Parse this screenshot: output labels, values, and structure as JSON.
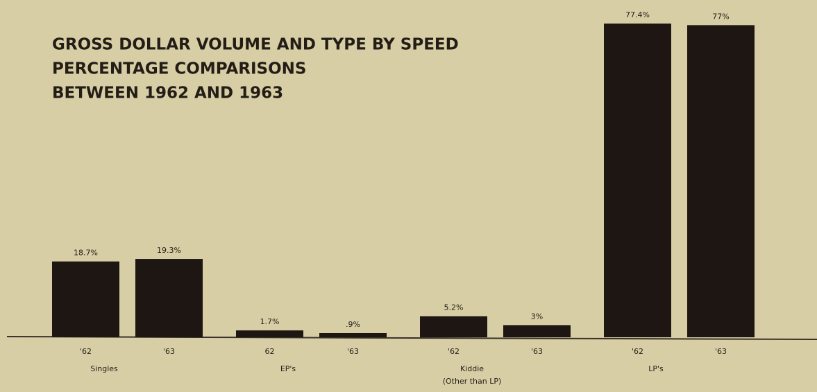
{
  "chart_data": {
    "type": "bar",
    "title": [
      "GROSS DOLLAR VOLUME AND TYPE BY SPEED",
      "PERCENTAGE COMPARISONS",
      "BETWEEN 1962 AND 1963"
    ],
    "color": "#1e1612",
    "groups": [
      {
        "name": "Singles",
        "categories": [
          "'62",
          "'63"
        ],
        "values": [
          18.7,
          19.3
        ],
        "value_labels": [
          "18.7%",
          "19.3%"
        ]
      },
      {
        "name": "EP's",
        "categories": [
          "62",
          "'63"
        ],
        "values": [
          1.7,
          0.9
        ],
        "value_labels": [
          "1.7%",
          ".9%"
        ]
      },
      {
        "name": "Kiddie",
        "note": "(Other than LP)",
        "categories": [
          "'62",
          "'63"
        ],
        "values": [
          5.2,
          3
        ],
        "value_labels": [
          "5.2%",
          "3%"
        ]
      },
      {
        "name": "LP's",
        "categories": [
          "'62",
          "'63"
        ],
        "values": [
          77.4,
          77
        ],
        "value_labels": [
          "77.4%",
          "77%"
        ]
      }
    ]
  }
}
